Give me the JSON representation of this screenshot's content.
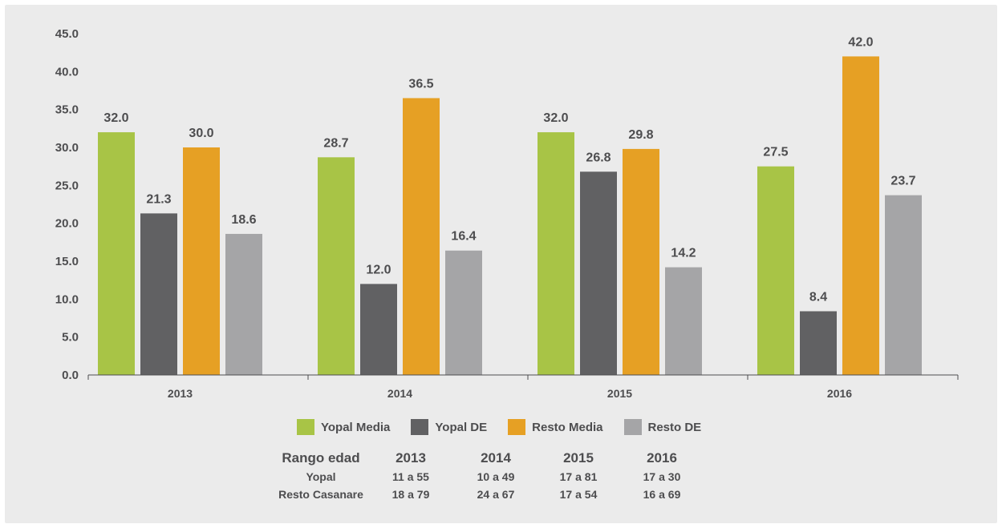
{
  "chart_data": {
    "type": "bar",
    "categories": [
      "2013",
      "2014",
      "2015",
      "2016"
    ],
    "series": [
      {
        "name": "Yopal Media",
        "values": [
          32.0,
          28.7,
          32.0,
          27.5
        ],
        "color": "#a8c446"
      },
      {
        "name": "Yopal DE",
        "values": [
          21.3,
          12.0,
          26.8,
          8.4
        ],
        "color": "#616163"
      },
      {
        "name": "Resto Media",
        "values": [
          30.0,
          36.5,
          29.8,
          42.0
        ],
        "color": "#e6a024"
      },
      {
        "name": "Resto DE",
        "values": [
          18.6,
          16.4,
          14.2,
          23.7
        ],
        "color": "#a5a5a7"
      }
    ],
    "ylim": [
      0,
      45
    ],
    "yticks": [
      "0.0",
      "5.0",
      "10.0",
      "15.0",
      "20.0",
      "25.0",
      "30.0",
      "35.0",
      "40.0",
      "45.0"
    ],
    "grid": false,
    "legend": "bottom",
    "value_labels": [
      [
        "32.0",
        "28.7",
        "32.0",
        "27.5"
      ],
      [
        "21.3",
        "12.0",
        "26.8",
        "8.4"
      ],
      [
        "30.0",
        "36.5",
        "29.8",
        "42.0"
      ],
      [
        "18.6",
        "16.4",
        "14.2",
        "23.7"
      ]
    ],
    "xlabel": "",
    "ylabel": ""
  },
  "range_table": {
    "header": [
      "Rango edad",
      "2013",
      "2014",
      "2015",
      "2016"
    ],
    "rows": [
      [
        "Yopal",
        "11 a 55",
        "10 a 49",
        "17 a 81",
        "17 a 30"
      ],
      [
        "Resto Casanare",
        "18 a 79",
        "24 a 67",
        "17 a 54",
        "16 a 69"
      ]
    ]
  },
  "colors": {
    "background": "#ebebeb",
    "text": "#4d4d4f",
    "axis": "#4d4d4f"
  }
}
